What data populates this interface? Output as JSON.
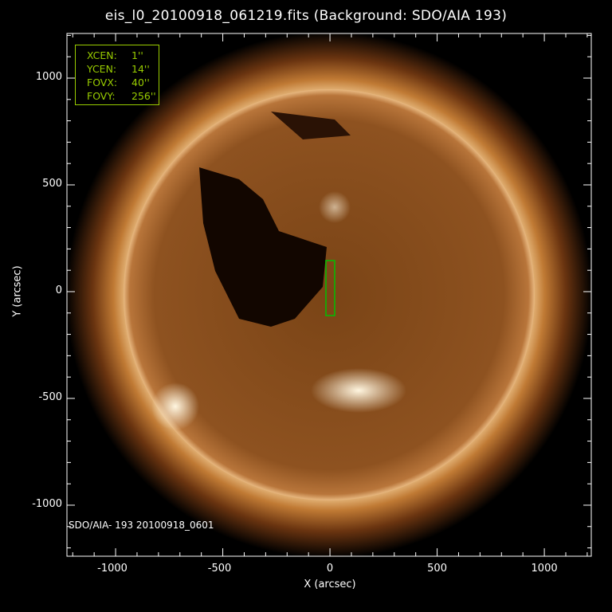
{
  "title": "eis_l0_20100918_061219.fits  (Background: SDO/AIA 193)",
  "x_axis": {
    "label": "X (arcsec)",
    "range": [
      -1227,
      1219
    ],
    "ticks": [
      "-1000",
      "-500",
      "0",
      "500",
      "1000"
    ],
    "tick_values": [
      -1000,
      -500,
      0,
      500,
      1000
    ]
  },
  "y_axis": {
    "label": "Y (arcsec)",
    "range": [
      -1239,
      1209
    ],
    "ticks": [
      "-1000",
      "-500",
      "0",
      "500",
      "1000"
    ],
    "tick_values": [
      -1000,
      -500,
      0,
      500,
      1000
    ]
  },
  "info_box": [
    {
      "key": "XCEN:",
      "value": "1''"
    },
    {
      "key": "YCEN:",
      "value": "14''"
    },
    {
      "key": "FOVX:",
      "value": "40''"
    },
    {
      "key": "FOVY:",
      "value": "256''"
    }
  ],
  "source_label": "SDO/AIA- 193 20100918_0601",
  "fov_box": {
    "xcen": 1,
    "ycen": 14,
    "fovx": 40,
    "fovy": 256
  },
  "colors": {
    "info": "#99cc00",
    "fov_box": "#00c000",
    "sun_bright": "#fff0d0",
    "sun_mid": "#8a4a14",
    "corona": "#b06a28"
  }
}
